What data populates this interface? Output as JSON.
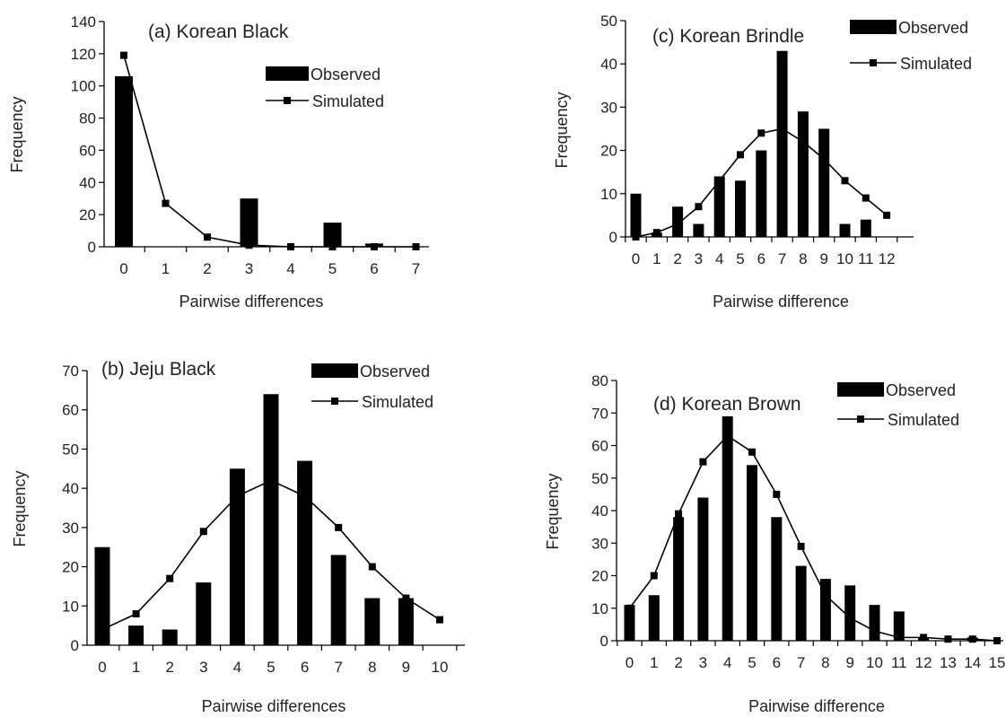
{
  "chart_data": [
    {
      "type": "bar",
      "title": "(a) Korean Black",
      "xlabel": "Pairwise differences",
      "ylabel": "Frequency",
      "ylim": [
        0,
        140
      ],
      "yticks": [
        0,
        20,
        40,
        60,
        80,
        100,
        120,
        140
      ],
      "categories": [
        "0",
        "1",
        "2",
        "3",
        "4",
        "5",
        "6",
        "7"
      ],
      "series": [
        {
          "name": "Observed",
          "kind": "bar",
          "values": [
            106,
            0,
            0,
            30,
            0,
            15,
            2,
            0
          ]
        },
        {
          "name": "Simulated",
          "kind": "line",
          "values": [
            119,
            27,
            6,
            1,
            0,
            0,
            0,
            0
          ]
        }
      ],
      "grid": false,
      "legend": "top-right"
    },
    {
      "type": "bar",
      "title": "(b) Jeju Black",
      "xlabel": "Pairwise differences",
      "ylabel": "Frequency",
      "ylim": [
        0,
        70
      ],
      "yticks": [
        0,
        10,
        20,
        30,
        40,
        50,
        60,
        70
      ],
      "categories": [
        "0",
        "1",
        "2",
        "3",
        "4",
        "5",
        "6",
        "7",
        "8",
        "9",
        "10"
      ],
      "series": [
        {
          "name": "Observed",
          "kind": "bar",
          "values": [
            25,
            5,
            4,
            16,
            45,
            64,
            47,
            23,
            12,
            12,
            0
          ]
        },
        {
          "name": "Simulated",
          "kind": "line",
          "values": [
            4,
            8,
            17,
            29,
            38,
            42,
            38,
            30,
            20,
            12,
            6.5
          ]
        }
      ],
      "grid": false,
      "legend": "top-right"
    },
    {
      "type": "bar",
      "title": "(c) Korean Brindle",
      "xlabel": "Pairwise difference",
      "ylabel": "Frequency",
      "ylim": [
        0,
        50
      ],
      "yticks": [
        0,
        10,
        20,
        30,
        40,
        50
      ],
      "categories": [
        "0",
        "1",
        "2",
        "3",
        "4",
        "5",
        "6",
        "7",
        "8",
        "9",
        "10",
        "11",
        "12"
      ],
      "series": [
        {
          "name": "Observed",
          "kind": "bar",
          "values": [
            10,
            1,
            7,
            3,
            14,
            13,
            20,
            43,
            29,
            25,
            3,
            4,
            0
          ]
        },
        {
          "name": "Simulated",
          "kind": "line",
          "values": [
            0,
            1,
            3,
            7,
            13,
            19,
            24,
            25,
            22,
            18,
            13,
            9,
            5
          ]
        }
      ],
      "grid": false,
      "legend": "top-right"
    },
    {
      "type": "bar",
      "title": "(d) Korean Brown",
      "xlabel": "Pairwise difference",
      "ylabel": "Frequency",
      "ylim": [
        0,
        80
      ],
      "yticks": [
        0,
        10,
        20,
        30,
        40,
        50,
        60,
        70,
        80
      ],
      "categories": [
        "0",
        "1",
        "2",
        "3",
        "4",
        "5",
        "6",
        "7",
        "8",
        "9",
        "10",
        "11",
        "12",
        "13",
        "14",
        "15"
      ],
      "series": [
        {
          "name": "Observed",
          "kind": "bar",
          "values": [
            11,
            14,
            38,
            44,
            69,
            54,
            38,
            23,
            19,
            17,
            11,
            9,
            1,
            0,
            1,
            0
          ]
        },
        {
          "name": "Simulated",
          "kind": "line",
          "values": [
            10,
            20,
            39,
            55,
            63,
            58,
            45,
            29,
            14,
            7,
            3,
            1,
            1,
            0.5,
            0.5,
            0
          ]
        }
      ],
      "grid": false,
      "legend": "top-right"
    }
  ]
}
